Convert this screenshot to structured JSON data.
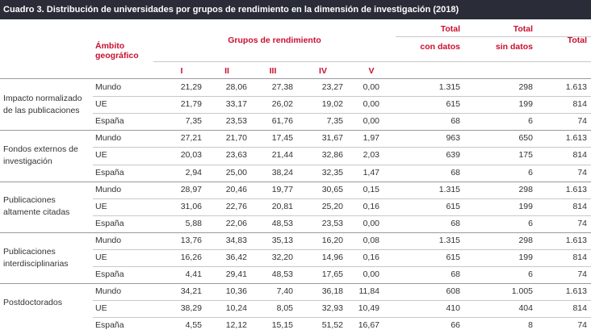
{
  "title": "Cuadro 3. Distribución de universidades por grupos de rendimiento en la dimensión de investigación (2018)",
  "header": {
    "ambito_line1": "Ámbito",
    "ambito_line2": "geográfico",
    "grupos": "Grupos de rendimiento",
    "total_con_1": "Total",
    "total_con_2": "con datos",
    "total_sin_1": "Total",
    "total_sin_2": "sin datos",
    "total": "Total",
    "roman": [
      "I",
      "II",
      "III",
      "IV",
      "V"
    ]
  },
  "groups": [
    {
      "label": "Impacto normalizado de las publicaciones",
      "rows": [
        {
          "ambito": "Mundo",
          "I": "21,29",
          "II": "28,06",
          "III": "27,38",
          "IV": "23,27",
          "V": "0,00",
          "con": "1.315",
          "sin": "298",
          "total": "1.613"
        },
        {
          "ambito": "UE",
          "I": "21,79",
          "II": "33,17",
          "III": "26,02",
          "IV": "19,02",
          "V": "0,00",
          "con": "615",
          "sin": "199",
          "total": "814"
        },
        {
          "ambito": "España",
          "I": "7,35",
          "II": "23,53",
          "III": "61,76",
          "IV": "7,35",
          "V": "0,00",
          "con": "68",
          "sin": "6",
          "total": "74"
        }
      ]
    },
    {
      "label": "Fondos externos de investigación",
      "rows": [
        {
          "ambito": "Mundo",
          "I": "27,21",
          "II": "21,70",
          "III": "17,45",
          "IV": "31,67",
          "V": "1,97",
          "con": "963",
          "sin": "650",
          "total": "1.613"
        },
        {
          "ambito": "UE",
          "I": "20,03",
          "II": "23,63",
          "III": "21,44",
          "IV": "32,86",
          "V": "2,03",
          "con": "639",
          "sin": "175",
          "total": "814"
        },
        {
          "ambito": "España",
          "I": "2,94",
          "II": "25,00",
          "III": "38,24",
          "IV": "32,35",
          "V": "1,47",
          "con": "68",
          "sin": "6",
          "total": "74"
        }
      ]
    },
    {
      "label": "Publicaciones altamente citadas",
      "rows": [
        {
          "ambito": "Mundo",
          "I": "28,97",
          "II": "20,46",
          "III": "19,77",
          "IV": "30,65",
          "V": "0,15",
          "con": "1.315",
          "sin": "298",
          "total": "1.613"
        },
        {
          "ambito": "UE",
          "I": "31,06",
          "II": "22,76",
          "III": "20,81",
          "IV": "25,20",
          "V": "0,16",
          "con": "615",
          "sin": "199",
          "total": "814"
        },
        {
          "ambito": "España",
          "I": "5,88",
          "II": "22,06",
          "III": "48,53",
          "IV": "23,53",
          "V": "0,00",
          "con": "68",
          "sin": "6",
          "total": "74"
        }
      ]
    },
    {
      "label": "Publicaciones interdisciplinarias",
      "rows": [
        {
          "ambito": "Mundo",
          "I": "13,76",
          "II": "34,83",
          "III": "35,13",
          "IV": "16,20",
          "V": "0,08",
          "con": "1.315",
          "sin": "298",
          "total": "1.613"
        },
        {
          "ambito": "UE",
          "I": "16,26",
          "II": "36,42",
          "III": "32,20",
          "IV": "14,96",
          "V": "0,16",
          "con": "615",
          "sin": "199",
          "total": "814"
        },
        {
          "ambito": "España",
          "I": "4,41",
          "II": "29,41",
          "III": "48,53",
          "IV": "17,65",
          "V": "0,00",
          "con": "68",
          "sin": "6",
          "total": "74"
        }
      ]
    },
    {
      "label": "Postdoctorados",
      "rows": [
        {
          "ambito": "Mundo",
          "I": "34,21",
          "II": "10,36",
          "III": "7,40",
          "IV": "36,18",
          "V": "11,84",
          "con": "608",
          "sin": "1.005",
          "total": "1.613"
        },
        {
          "ambito": "UE",
          "I": "38,29",
          "II": "10,24",
          "III": "8,05",
          "IV": "32,93",
          "V": "10,49",
          "con": "410",
          "sin": "404",
          "total": "814"
        },
        {
          "ambito": "España",
          "I": "4,55",
          "II": "12,12",
          "III": "15,15",
          "IV": "51,52",
          "V": "16,67",
          "con": "66",
          "sin": "8",
          "total": "74"
        }
      ]
    }
  ]
}
